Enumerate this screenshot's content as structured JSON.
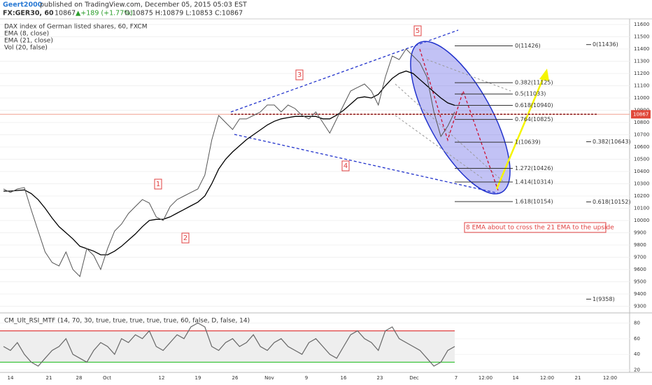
{
  "header": {
    "author": "Geert2000",
    "published": "published on TradingView.com, December 05, 2015 05:03 EST",
    "symbol": "FX:GER30, 60",
    "change": "▲+189 (+1.77%)",
    "ohlc": "O:10875 H:10879 L:10853 C:10867"
  },
  "chart_data": [
    {
      "type": "line",
      "title": "DAX index of German listed shares, 60, FXCM",
      "indicators": [
        "EMA (8, close)",
        "Vol (20, false)"
      ],
      "values": [
        10257,
        10229,
        10257,
        10269,
        10086,
        9914,
        9743,
        9657,
        9629,
        9743,
        9600,
        9543,
        9771,
        9714,
        9600,
        9771,
        9914,
        9971,
        10057,
        10114,
        10171,
        10143,
        10029,
        10000,
        10114,
        10171,
        10200,
        10229,
        10257,
        10371,
        10657,
        10857,
        10800,
        10743,
        10829,
        10829,
        10857,
        10886,
        10943,
        10943,
        10886,
        10943,
        10914,
        10857,
        10829,
        10886,
        10800,
        10714,
        10829,
        10943,
        11057,
        11086,
        11114,
        11057,
        10943,
        11171,
        11343,
        11314,
        11400,
        11343,
        11286,
        11171,
        10886,
        10686,
        10771,
        10886
      ],
      "color": "#555555",
      "series": [
        {
          "name": "EMA (21, close)",
          "color": "#000000",
          "values": [
            10240,
            10240,
            10245,
            10250,
            10220,
            10170,
            10100,
            10020,
            9950,
            9900,
            9850,
            9790,
            9770,
            9750,
            9720,
            9720,
            9750,
            9790,
            9840,
            9890,
            9950,
            10000,
            10010,
            10010,
            10030,
            10060,
            10090,
            10120,
            10150,
            10200,
            10300,
            10420,
            10500,
            10560,
            10610,
            10660,
            10700,
            10740,
            10780,
            10810,
            10830,
            10840,
            10850,
            10850,
            10850,
            10850,
            10830,
            10830,
            10860,
            10900,
            10950,
            11000,
            11010,
            11000,
            11030,
            11100,
            11160,
            11200,
            11220,
            11200,
            11150,
            11100,
            11050,
            11000,
            10960,
            10940
          ]
        }
      ],
      "ylim": [
        9240,
        11640
      ],
      "yticks": [
        9300,
        9400,
        9500,
        9600,
        9700,
        9800,
        9900,
        10000,
        10100,
        10200,
        10300,
        10400,
        10500,
        10600,
        10700,
        10800,
        10900,
        11000,
        11100,
        11200,
        11300,
        11400,
        11500,
        11600
      ],
      "grid": true,
      "last_price": 10867,
      "fib_levels": [
        {
          "value": 11426,
          "label": "0(11426)"
        },
        {
          "value": 11125,
          "label": "0.382(11125)"
        },
        {
          "value": 11033,
          "label": "0.5(11033)"
        },
        {
          "value": 10940,
          "label": "0.618(10940)"
        },
        {
          "value": 10825,
          "label": "0.764(10825)"
        },
        {
          "value": 10639,
          "label": "1(10639)"
        },
        {
          "value": 10426,
          "label": "1.272(10426)"
        },
        {
          "value": 10314,
          "label": "1.414(10314)"
        },
        {
          "value": 10154,
          "label": "1.618(10154)"
        }
      ],
      "fib_levels_right": [
        {
          "value": 11436,
          "label": "0(11436)"
        },
        {
          "value": 10643,
          "label": "0.382(10643)"
        },
        {
          "value": 10152,
          "label": "0.618(10152)"
        },
        {
          "value": 9358,
          "label": "1(9358)"
        }
      ],
      "wave_labels": [
        "1",
        "2",
        "3",
        "4",
        "5"
      ],
      "annotation": "8 EMA about to cross the 21 EMA to the upside",
      "xtick_labels": [
        "14",
        "21",
        "28",
        "Oct",
        "12",
        "19",
        "26",
        "Nov",
        "9",
        "16",
        "23",
        "Dec",
        "7",
        "12:00",
        "14",
        "12:00",
        "21",
        "12:00"
      ]
    },
    {
      "type": "line",
      "title": "CM_Ult_RSI_MTF (14, 70, 30, true, true, true, true, true, 60, false, D, false, 14)",
      "values": [
        50,
        45,
        55,
        40,
        30,
        25,
        35,
        45,
        50,
        60,
        40,
        35,
        30,
        45,
        55,
        50,
        40,
        60,
        55,
        65,
        60,
        70,
        50,
        45,
        55,
        65,
        60,
        75,
        80,
        75,
        50,
        45,
        55,
        60,
        50,
        55,
        65,
        50,
        45,
        55,
        60,
        50,
        45,
        40,
        55,
        60,
        50,
        40,
        35,
        50,
        65,
        70,
        60,
        55,
        45,
        70,
        75,
        60,
        55,
        50,
        45,
        35,
        25,
        30,
        45,
        50
      ],
      "color": "#666666",
      "ylim": [
        17,
        92
      ],
      "yticks": [
        20,
        40,
        60,
        80
      ],
      "upper_band": 70,
      "lower_band": 30
    }
  ]
}
